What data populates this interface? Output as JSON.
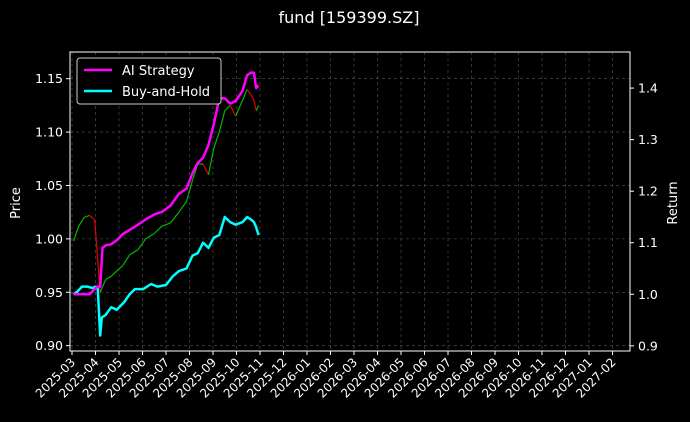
{
  "chart_data": {
    "type": "line",
    "title": "fund [159399.SZ]",
    "ylabel_left": "Price",
    "ylabel_right": "Return",
    "ylim_left": [
      0.895,
      1.175
    ],
    "ylim_right": [
      0.89,
      1.47
    ],
    "grid": true,
    "legend_position": "top-left",
    "x_ticks": [
      "2025-03",
      "2025-04",
      "2025-05",
      "2025-06",
      "2025-07",
      "2025-08",
      "2025-09",
      "2025-10",
      "2025-11",
      "2025-12",
      "2026-01",
      "2026-02",
      "2026-03",
      "2026-04",
      "2026-05",
      "2026-06",
      "2026-07",
      "2026-08",
      "2026-09",
      "2026-10",
      "2026-11",
      "2026-12",
      "2027-01",
      "2027-02"
    ],
    "y_ticks_left": [
      "0.90",
      "0.95",
      "1.00",
      "1.05",
      "1.10",
      "1.15"
    ],
    "y_ticks_left_values": [
      0.9,
      0.95,
      1.0,
      1.05,
      1.1,
      1.15
    ],
    "y_ticks_right": [
      "0.9",
      "1.0",
      "1.1",
      "1.2",
      "1.3",
      "1.4"
    ],
    "y_ticks_right_values": [
      0.9,
      1.0,
      1.1,
      1.2,
      1.3,
      1.4
    ],
    "series": [
      {
        "name": "AI Strategy",
        "axis": "right",
        "color": "#ff00ff",
        "x": [
          "2025-03-03",
          "2025-03-10",
          "2025-03-17",
          "2025-03-24",
          "2025-03-31",
          "2025-04-03",
          "2025-04-07",
          "2025-04-10",
          "2025-04-14",
          "2025-04-21",
          "2025-04-28",
          "2025-05-06",
          "2025-05-15",
          "2025-05-26",
          "2025-06-05",
          "2025-06-16",
          "2025-06-26",
          "2025-07-07",
          "2025-07-18",
          "2025-07-28",
          "2025-08-05",
          "2025-08-12",
          "2025-08-19",
          "2025-08-26",
          "2025-09-02",
          "2025-09-09",
          "2025-09-16",
          "2025-09-23",
          "2025-09-30",
          "2025-10-09",
          "2025-10-15",
          "2025-10-20",
          "2025-10-24",
          "2025-10-27",
          "2025-10-30"
        ],
        "values": [
          1.0,
          1.0,
          1.0,
          1.0,
          1.01,
          1.015,
          1.015,
          1.09,
          1.095,
          1.097,
          1.105,
          1.117,
          1.125,
          1.135,
          1.145,
          1.155,
          1.16,
          1.172,
          1.195,
          1.205,
          1.235,
          1.255,
          1.265,
          1.29,
          1.33,
          1.38,
          1.38,
          1.37,
          1.375,
          1.395,
          1.425,
          1.43,
          1.43,
          1.4,
          1.405
        ]
      },
      {
        "name": "Buy-and-Hold",
        "axis": "right",
        "color": "#00ffff",
        "x": [
          "2025-03-03",
          "2025-03-08",
          "2025-03-14",
          "2025-03-21",
          "2025-03-28",
          "2025-04-01",
          "2025-04-04",
          "2025-04-07",
          "2025-04-09",
          "2025-04-14",
          "2025-04-21",
          "2025-04-28",
          "2025-05-08",
          "2025-05-15",
          "2025-05-22",
          "2025-06-02",
          "2025-06-12",
          "2025-06-20",
          "2025-07-01",
          "2025-07-10",
          "2025-07-18",
          "2025-07-28",
          "2025-08-05",
          "2025-08-12",
          "2025-08-19",
          "2025-08-26",
          "2025-09-02",
          "2025-09-09",
          "2025-09-16",
          "2025-09-23",
          "2025-09-30",
          "2025-10-09",
          "2025-10-15",
          "2025-10-20",
          "2025-10-24",
          "2025-10-27",
          "2025-10-30"
        ],
        "values": [
          1.0,
          1.005,
          1.015,
          1.015,
          1.012,
          1.015,
          1.01,
          0.92,
          0.955,
          0.96,
          0.975,
          0.97,
          0.985,
          1.0,
          1.01,
          1.01,
          1.02,
          1.015,
          1.018,
          1.035,
          1.045,
          1.05,
          1.075,
          1.08,
          1.1,
          1.09,
          1.11,
          1.115,
          1.15,
          1.14,
          1.135,
          1.14,
          1.15,
          1.145,
          1.14,
          1.13,
          1.115
        ]
      },
      {
        "name": "",
        "axis": "left",
        "kind": "price",
        "color_up": "#00cc00",
        "color_down": "#ff0000",
        "x": [
          "2025-03-03",
          "2025-03-10",
          "2025-03-17",
          "2025-03-24",
          "2025-03-31",
          "2025-04-07",
          "2025-04-14",
          "2025-04-21",
          "2025-04-28",
          "2025-05-06",
          "2025-05-15",
          "2025-05-26",
          "2025-06-05",
          "2025-06-16",
          "2025-06-26",
          "2025-07-07",
          "2025-07-18",
          "2025-07-28",
          "2025-08-05",
          "2025-08-12",
          "2025-08-19",
          "2025-08-26",
          "2025-09-02",
          "2025-09-09",
          "2025-09-16",
          "2025-09-23",
          "2025-09-30",
          "2025-10-09",
          "2025-10-15",
          "2025-10-20",
          "2025-10-24",
          "2025-10-27",
          "2025-10-30"
        ],
        "values": [
          0.998,
          1.012,
          1.02,
          1.022,
          1.018,
          0.95,
          0.962,
          0.965,
          0.97,
          0.975,
          0.985,
          0.99,
          1.0,
          1.005,
          1.012,
          1.015,
          1.025,
          1.035,
          1.055,
          1.07,
          1.07,
          1.06,
          1.085,
          1.1,
          1.12,
          1.125,
          1.115,
          1.13,
          1.14,
          1.135,
          1.13,
          1.12,
          1.125
        ]
      }
    ]
  }
}
